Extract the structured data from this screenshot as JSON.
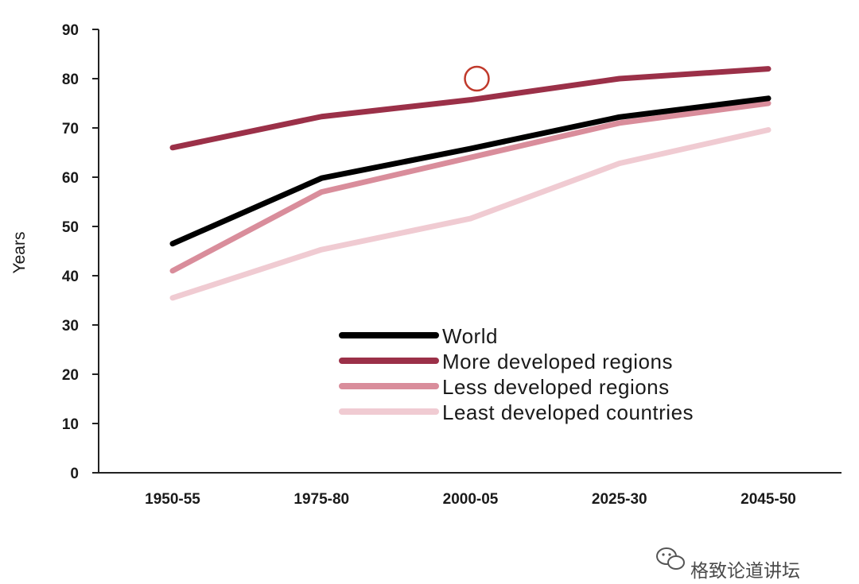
{
  "chart_data": {
    "type": "line",
    "title": "",
    "xlabel": "",
    "ylabel": "Years",
    "ylim": [
      0,
      90
    ],
    "yticks": [
      0,
      10,
      20,
      30,
      40,
      50,
      60,
      70,
      80,
      90
    ],
    "categories": [
      "1950-55",
      "1975-80",
      "2000-05",
      "2025-30",
      "2045-50"
    ],
    "grid": false,
    "legend_placement": "lower-right",
    "series": [
      {
        "name": "World",
        "color": "#000000",
        "values": [
          46.5,
          59.8,
          65.8,
          72.2,
          76.0
        ]
      },
      {
        "name": "More developed regions",
        "color": "#9b3048",
        "values": [
          66.0,
          72.3,
          75.7,
          80.0,
          82.0
        ]
      },
      {
        "name": "Less developed regions",
        "color": "#d98d9b",
        "values": [
          41.0,
          57.0,
          64.0,
          71.0,
          75.0
        ]
      },
      {
        "name": "Least developed countries",
        "color": "#f0cbd2",
        "values": [
          35.5,
          45.3,
          51.6,
          62.8,
          69.6
        ]
      }
    ],
    "annotations": [
      {
        "type": "circle-marker",
        "x": "2000-05",
        "y": 80,
        "color": "#c0392b"
      }
    ]
  },
  "watermark": {
    "icon": "wechat-icon",
    "text": "格致论道讲坛"
  }
}
